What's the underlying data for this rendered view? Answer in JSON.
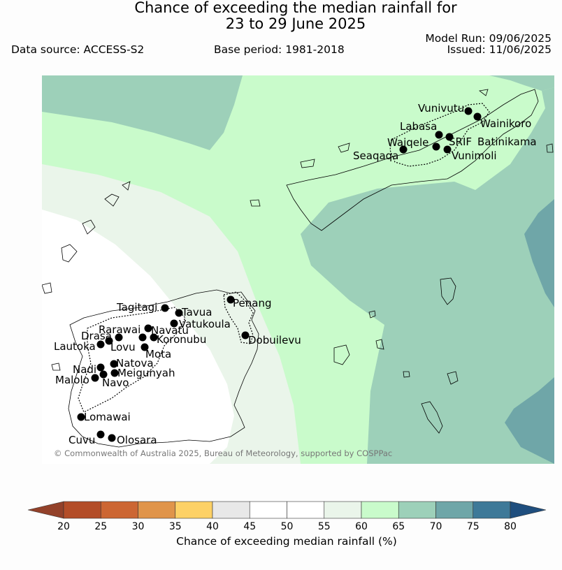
{
  "header": {
    "title_line1": "Chance of exceeding the median rainfall for",
    "title_line2": "23 to 29 June 2025",
    "data_source": "Data source: ACCESS-S2",
    "base_period": "Base period: 1981-2018",
    "model_run": "Model Run: 09/06/2025",
    "issued": "Issued: 11/06/2025"
  },
  "map": {
    "copyright": "© Commonwealth of Australia 2025, Bureau of Meteorology, supported by COSPPac",
    "places": [
      {
        "name": "Vunivutu"
      },
      {
        "name": "Wainikoro"
      },
      {
        "name": "Labasa"
      },
      {
        "name": "SRIF"
      },
      {
        "name": "Batinikama"
      },
      {
        "name": "Waiqele"
      },
      {
        "name": "Seaqaqa"
      },
      {
        "name": "Vunimoli"
      },
      {
        "name": "Tagitagi"
      },
      {
        "name": "Tavua"
      },
      {
        "name": "Penang"
      },
      {
        "name": "Vatukoula"
      },
      {
        "name": "Rarawai"
      },
      {
        "name": "Navatu"
      },
      {
        "name": "Drasa"
      },
      {
        "name": "Koronubu"
      },
      {
        "name": "Lautoka"
      },
      {
        "name": "Lovu"
      },
      {
        "name": "Dobuilevu"
      },
      {
        "name": "Mota"
      },
      {
        "name": "Natova"
      },
      {
        "name": "Nadi"
      },
      {
        "name": "Meigunyah"
      },
      {
        "name": "Malolo"
      },
      {
        "name": "Navo"
      },
      {
        "name": "Lomawai"
      },
      {
        "name": "Cuvu"
      },
      {
        "name": "Olosara"
      }
    ]
  },
  "colorbar": {
    "label": "Chance of exceeding median rainfall (%)",
    "ticks": [
      "20",
      "25",
      "30",
      "35",
      "40",
      "45",
      "50",
      "55",
      "60",
      "65",
      "70",
      "75",
      "80"
    ],
    "colors": [
      "#b34d28",
      "#cc6633",
      "#e0944a",
      "#fdd166",
      "#e8e8e8",
      "#ffffff",
      "#ffffff",
      "#eaf5ea",
      "#c9fbcb",
      "#9dd0b9",
      "#6fa6a8",
      "#3e7998"
    ],
    "under_color": "#93412a",
    "over_color": "#1f4e7e"
  }
}
